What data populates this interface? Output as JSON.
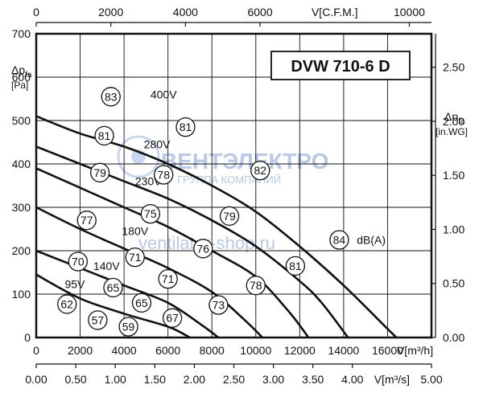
{
  "chart_data": {
    "type": "line",
    "title": "DVW 710-6 D",
    "x": {
      "label": "V[m³/h]",
      "range": [
        0,
        18000
      ],
      "ticks": [
        "0",
        "2000",
        "4000",
        "6000",
        "8000",
        "10000",
        "12000",
        "14000",
        "16000"
      ]
    },
    "y": {
      "label_main": "Δp",
      "label_sub": "fa",
      "label_unit": "[Pa]",
      "range": [
        0,
        700
      ],
      "ticks": [
        "0",
        "100",
        "200",
        "300",
        "400",
        "500",
        "600",
        "700"
      ]
    },
    "x_top": {
      "label": "V[C.F.M.]",
      "ticks": [
        "0",
        "2000",
        "4000",
        "6000",
        "10000"
      ],
      "values": [
        0,
        2000,
        4000,
        6000,
        10000
      ]
    },
    "x_bottom2": {
      "label": "V[m³/s]",
      "ticks": [
        "0.00",
        "0.50",
        "1.00",
        "1.50",
        "2.00",
        "2.50",
        "3.00",
        "3.50",
        "4.00",
        "5.00"
      ],
      "values": [
        0,
        0.5,
        1.0,
        1.5,
        2.0,
        2.5,
        3.0,
        3.5,
        4.0,
        5.0
      ]
    },
    "y_right": {
      "label_main": "Δp",
      "label_sub": "fa",
      "label_unit": "[in.WG]",
      "ticks": [
        "0.00",
        "0.50",
        "1.00",
        "1.50",
        "2.00",
        "2.50"
      ],
      "values": [
        0,
        0.5,
        1.0,
        1.5,
        2.0,
        2.5
      ]
    },
    "grid": true,
    "series": [
      {
        "name": "400V",
        "points": [
          [
            0,
            510
          ],
          [
            2000,
            470
          ],
          [
            4000,
            440
          ],
          [
            6000,
            400
          ],
          [
            8000,
            350
          ],
          [
            10000,
            290
          ],
          [
            12000,
            210
          ],
          [
            14000,
            120
          ],
          [
            16000,
            20
          ],
          [
            16400,
            0
          ]
        ]
      },
      {
        "name": "280V",
        "points": [
          [
            0,
            440
          ],
          [
            2000,
            400
          ],
          [
            4000,
            360
          ],
          [
            6000,
            320
          ],
          [
            8000,
            270
          ],
          [
            10000,
            210
          ],
          [
            12000,
            130
          ],
          [
            13000,
            80
          ],
          [
            14200,
            0
          ]
        ]
      },
      {
        "name": "230V",
        "points": [
          [
            0,
            390
          ],
          [
            2000,
            345
          ],
          [
            4000,
            300
          ],
          [
            6000,
            255
          ],
          [
            8000,
            200
          ],
          [
            10000,
            140
          ],
          [
            11500,
            60
          ],
          [
            12400,
            0
          ]
        ]
      },
      {
        "name": "180V",
        "points": [
          [
            0,
            300
          ],
          [
            2000,
            250
          ],
          [
            4000,
            205
          ],
          [
            6000,
            160
          ],
          [
            8000,
            105
          ],
          [
            9500,
            40
          ],
          [
            10300,
            0
          ]
        ]
      },
      {
        "name": "140V",
        "points": [
          [
            0,
            200
          ],
          [
            2000,
            160
          ],
          [
            4000,
            120
          ],
          [
            6000,
            80
          ],
          [
            7500,
            30
          ],
          [
            8300,
            0
          ]
        ]
      },
      {
        "name": "95V",
        "points": [
          [
            0,
            145
          ],
          [
            2000,
            90
          ],
          [
            4000,
            55
          ],
          [
            6000,
            25
          ],
          [
            7000,
            0
          ]
        ]
      }
    ],
    "noise_markers": [
      {
        "label": "83",
        "x": 3400,
        "y": 555
      },
      {
        "label": "81",
        "x": 6800,
        "y": 485
      },
      {
        "label": "82",
        "x": 10200,
        "y": 385
      },
      {
        "label": "84",
        "x": 13800,
        "y": 225
      },
      {
        "label": "81",
        "x": 3100,
        "y": 465
      },
      {
        "label": "78",
        "x": 5800,
        "y": 375
      },
      {
        "label": "79",
        "x": 8800,
        "y": 280
      },
      {
        "label": "81",
        "x": 11800,
        "y": 165
      },
      {
        "label": "79",
        "x": 2900,
        "y": 380
      },
      {
        "label": "75",
        "x": 5200,
        "y": 285
      },
      {
        "label": "76",
        "x": 7600,
        "y": 205
      },
      {
        "label": "78",
        "x": 10000,
        "y": 120
      },
      {
        "label": "77",
        "x": 2300,
        "y": 270
      },
      {
        "label": "71",
        "x": 4500,
        "y": 185
      },
      {
        "label": "71",
        "x": 6000,
        "y": 135
      },
      {
        "label": "73",
        "x": 8300,
        "y": 75
      },
      {
        "label": "70",
        "x": 1900,
        "y": 175
      },
      {
        "label": "65",
        "x": 3500,
        "y": 115
      },
      {
        "label": "65",
        "x": 4800,
        "y": 80
      },
      {
        "label": "67",
        "x": 6200,
        "y": 45
      },
      {
        "label": "62",
        "x": 1400,
        "y": 77
      },
      {
        "label": "57",
        "x": 2800,
        "y": 40
      },
      {
        "label": "59",
        "x": 4200,
        "y": 25
      }
    ],
    "annotations": [
      {
        "text": "400V",
        "x": 5200,
        "y": 560
      },
      {
        "text": "280V",
        "x": 4900,
        "y": 445
      },
      {
        "text": "230V",
        "x": 4500,
        "y": 360
      },
      {
        "text": "180V",
        "x": 3900,
        "y": 245
      },
      {
        "text": "140V",
        "x": 2600,
        "y": 165
      },
      {
        "text": "95V",
        "x": 1300,
        "y": 123
      },
      {
        "text": "dB(A)",
        "x": 14600,
        "y": 225
      }
    ]
  },
  "watermark": {
    "brand": "ВЕНТЭЛЕКТРО",
    "group": "ГРУППА КОМПАНИЙ",
    "site": "ventilator-shop.ru"
  },
  "colors": {
    "line": "#111111",
    "grid": "#111111",
    "watermark": "#b9c9e6"
  }
}
